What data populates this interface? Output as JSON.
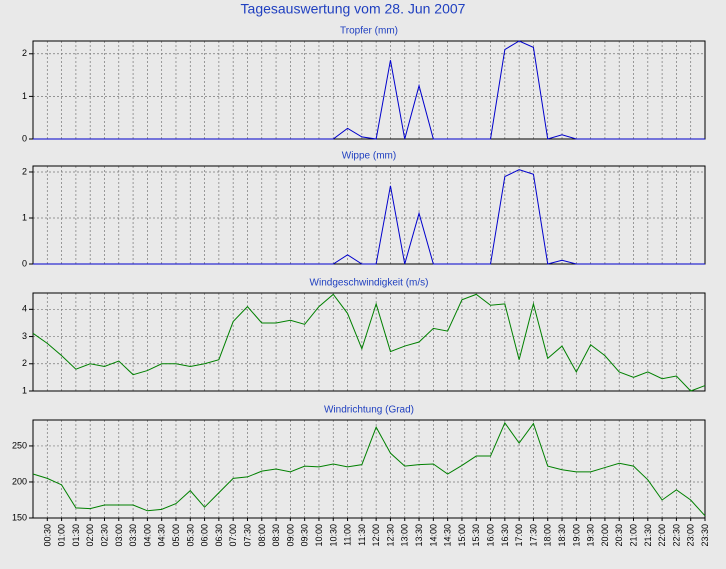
{
  "title": "Tagesauswertung vom 28. Jun 2007",
  "chart_data": [
    {
      "type": "line",
      "title": "Tropfer (mm)",
      "color": "#0000cc",
      "ylim": [
        0,
        2.3
      ],
      "yticks": [
        0,
        1,
        2
      ],
      "grid": true,
      "values": [
        0,
        0,
        0,
        0,
        0,
        0,
        0,
        0,
        0,
        0,
        0,
        0,
        0,
        0,
        0,
        0,
        0,
        0,
        0,
        0,
        0,
        0,
        0.25,
        0.05,
        0,
        1.85,
        0,
        1.25,
        0,
        0,
        0,
        0,
        0,
        2.1,
        2.3,
        2.15,
        0,
        0.1,
        0,
        0,
        0,
        0,
        0,
        0,
        0,
        0,
        0,
        0
      ]
    },
    {
      "type": "line",
      "title": "Wippe (mm)",
      "color": "#0000cc",
      "ylim": [
        0,
        2.13
      ],
      "yticks": [
        0,
        1,
        2
      ],
      "grid": true,
      "values": [
        0,
        0,
        0,
        0,
        0,
        0,
        0,
        0,
        0,
        0,
        0,
        0,
        0,
        0,
        0,
        0,
        0,
        0,
        0,
        0,
        0,
        0,
        0.2,
        0,
        0,
        1.7,
        0,
        1.1,
        0,
        0,
        0,
        0,
        0,
        1.9,
        2.05,
        1.95,
        0,
        0.08,
        0,
        0,
        0,
        0,
        0,
        0,
        0,
        0,
        0,
        0
      ]
    },
    {
      "type": "line",
      "title": "Windgeschwindigkeit (m/s)",
      "color": "#008000",
      "ylim": [
        1,
        4.6
      ],
      "yticks": [
        1,
        2,
        3,
        4
      ],
      "grid": true,
      "values": [
        3.12,
        2.75,
        2.3,
        1.8,
        2.0,
        1.9,
        2.1,
        1.6,
        1.75,
        2.0,
        2.0,
        1.9,
        2.0,
        2.15,
        3.55,
        4.1,
        3.5,
        3.5,
        3.6,
        3.45,
        4.1,
        4.55,
        3.85,
        2.55,
        4.2,
        2.45,
        2.65,
        2.8,
        3.3,
        3.2,
        4.35,
        4.55,
        4.15,
        4.2,
        2.15,
        4.2,
        2.2,
        2.65,
        1.7,
        2.7,
        2.3,
        1.7,
        1.5,
        1.7,
        1.45,
        1.55,
        1.0,
        1.2
      ]
    },
    {
      "type": "line",
      "title": "Windrichtung (Grad)",
      "color": "#008000",
      "ylim": [
        150,
        286
      ],
      "yticks": [
        150,
        200,
        250
      ],
      "grid": true,
      "categories": [
        null,
        "00:30",
        "01:00",
        "01:30",
        "02:00",
        "02:30",
        "03:00",
        "03:30",
        "04:00",
        "04:30",
        "05:00",
        "05:30",
        "06:00",
        "06:30",
        "07:00",
        "07:30",
        "08:00",
        "08:30",
        "09:00",
        "09:30",
        "10:00",
        "10:30",
        "11:00",
        "11:30",
        "12:00",
        "12:30",
        "13:00",
        "13:30",
        "14:00",
        "14:30",
        "15:00",
        "15:30",
        "16:00",
        "16:30",
        "17:00",
        "17:30",
        "18:00",
        "18:30",
        "19:00",
        "19:30",
        "20:00",
        "20:30",
        "21:00",
        "21:30",
        "22:00",
        "22:30",
        "23:00",
        "23:30"
      ],
      "values": [
        211,
        205,
        196,
        164,
        163,
        168,
        168,
        168,
        160,
        162,
        170,
        188,
        165,
        185,
        205,
        207,
        215,
        218,
        214,
        222,
        221,
        225,
        221,
        224,
        276,
        240,
        222,
        224,
        225,
        211,
        223,
        236,
        236,
        282,
        254,
        281,
        222,
        217,
        214,
        214,
        220,
        226,
        222,
        203,
        175,
        189,
        175,
        153
      ]
    }
  ]
}
